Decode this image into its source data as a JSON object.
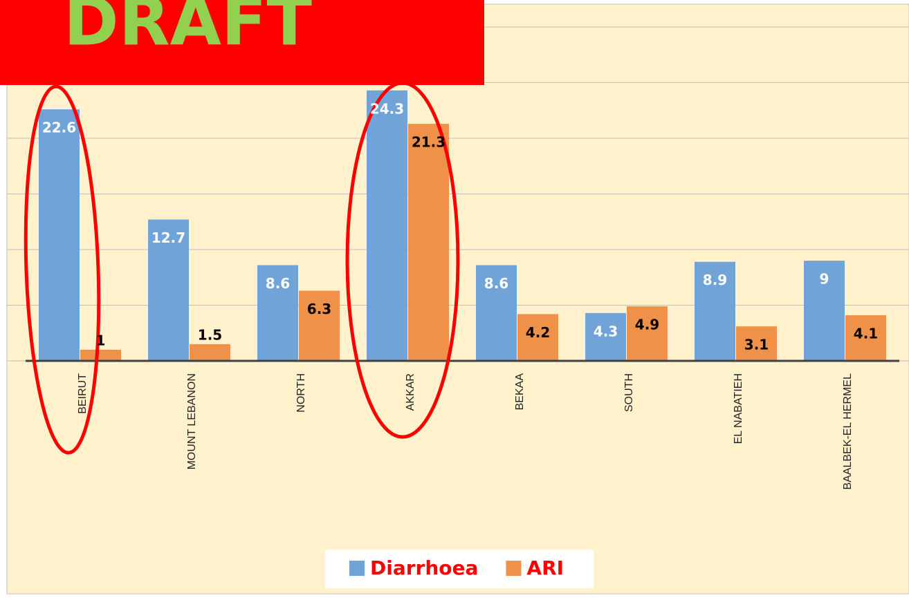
{
  "chart_data": {
    "type": "bar",
    "watermark": "DRAFT",
    "categories": [
      "BEIRUT",
      "MOUNT LEBANON",
      "NORTH",
      "AKKAR",
      "BEKAA",
      "SOUTH",
      "EL NABATIEH",
      "BAALBEK-EL HERMEL"
    ],
    "series": [
      {
        "name": "Diarrhoea",
        "color": "#70a4d8",
        "values": [
          22.6,
          12.7,
          8.6,
          24.3,
          8.6,
          4.3,
          8.9,
          9
        ]
      },
      {
        "name": "ARI",
        "color": "#f0914a",
        "values": [
          1,
          1.5,
          6.3,
          21.3,
          4.2,
          4.9,
          3.1,
          4.1
        ]
      }
    ],
    "ylim": [
      0,
      30
    ],
    "yticks": [
      0,
      5,
      10,
      15,
      20,
      25,
      30
    ],
    "grid": true,
    "legend": "bottom"
  }
}
